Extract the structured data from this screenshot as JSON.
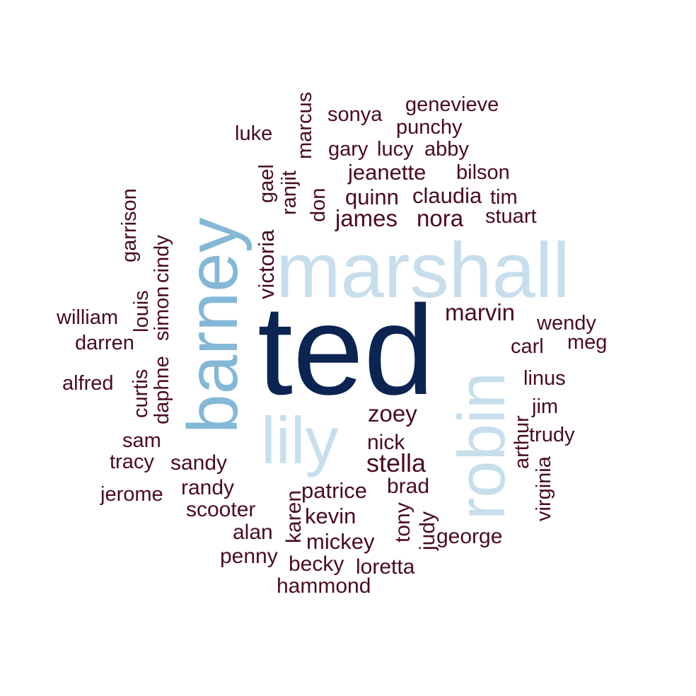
{
  "colors": {
    "background": "#ffffff",
    "tier1": "#0b2452",
    "tier2": "#84b8d6",
    "tier3": "#c7dfec",
    "tier4": "#4a0a24"
  },
  "chart_data": {
    "type": "wordcloud",
    "title": "",
    "words": [
      {
        "word": "ted",
        "tier": 1
      },
      {
        "word": "barney",
        "tier": 2
      },
      {
        "word": "marshall",
        "tier": 3
      },
      {
        "word": "robin",
        "tier": 3
      },
      {
        "word": "lily",
        "tier": 3
      },
      {
        "word": "marvin",
        "tier": 4
      },
      {
        "word": "zoey",
        "tier": 4
      },
      {
        "word": "stella",
        "tier": 4
      },
      {
        "word": "nora",
        "tier": 4
      },
      {
        "word": "james",
        "tier": 4
      },
      {
        "word": "quinn",
        "tier": 4
      },
      {
        "word": "jeanette",
        "tier": 4
      },
      {
        "word": "claudia",
        "tier": 4
      },
      {
        "word": "victoria",
        "tier": 4
      },
      {
        "word": "patrice",
        "tier": 4
      },
      {
        "word": "nick",
        "tier": 4
      },
      {
        "word": "brad",
        "tier": 4
      },
      {
        "word": "kevin",
        "tier": 4
      },
      {
        "word": "mickey",
        "tier": 4
      },
      {
        "word": "sandy",
        "tier": 4
      },
      {
        "word": "randy",
        "tier": 4
      },
      {
        "word": "scooter",
        "tier": 4
      },
      {
        "word": "penny",
        "tier": 4
      },
      {
        "word": "becky",
        "tier": 4
      },
      {
        "word": "loretta",
        "tier": 4
      },
      {
        "word": "hammond",
        "tier": 4
      },
      {
        "word": "alan",
        "tier": 4
      },
      {
        "word": "karen",
        "tier": 4
      },
      {
        "word": "tony",
        "tier": 4
      },
      {
        "word": "judy",
        "tier": 4
      },
      {
        "word": "george",
        "tier": 4
      },
      {
        "word": "jerome",
        "tier": 4
      },
      {
        "word": "tracy",
        "tier": 4
      },
      {
        "word": "sam",
        "tier": 4
      },
      {
        "word": "alfred",
        "tier": 4
      },
      {
        "word": "darren",
        "tier": 4
      },
      {
        "word": "william",
        "tier": 4
      },
      {
        "word": "curtis",
        "tier": 4
      },
      {
        "word": "daphne",
        "tier": 4
      },
      {
        "word": "louis",
        "tier": 4
      },
      {
        "word": "simon",
        "tier": 4
      },
      {
        "word": "cindy",
        "tier": 4
      },
      {
        "word": "garrison",
        "tier": 4
      },
      {
        "word": "luke",
        "tier": 4
      },
      {
        "word": "gael",
        "tier": 4
      },
      {
        "word": "ranjit",
        "tier": 4
      },
      {
        "word": "marcus",
        "tier": 4
      },
      {
        "word": "don",
        "tier": 4
      },
      {
        "word": "sonya",
        "tier": 4
      },
      {
        "word": "genevieve",
        "tier": 4
      },
      {
        "word": "punchy",
        "tier": 4
      },
      {
        "word": "gary",
        "tier": 4
      },
      {
        "word": "lucy",
        "tier": 4
      },
      {
        "word": "abby",
        "tier": 4
      },
      {
        "word": "bilson",
        "tier": 4
      },
      {
        "word": "tim",
        "tier": 4
      },
      {
        "word": "stuart",
        "tier": 4
      },
      {
        "word": "wendy",
        "tier": 4
      },
      {
        "word": "carl",
        "tier": 4
      },
      {
        "word": "meg",
        "tier": 4
      },
      {
        "word": "linus",
        "tier": 4
      },
      {
        "word": "jim",
        "tier": 4
      },
      {
        "word": "arthur",
        "tier": 4
      },
      {
        "word": "trudy",
        "tier": 4
      },
      {
        "word": "virginia",
        "tier": 4
      }
    ]
  }
}
